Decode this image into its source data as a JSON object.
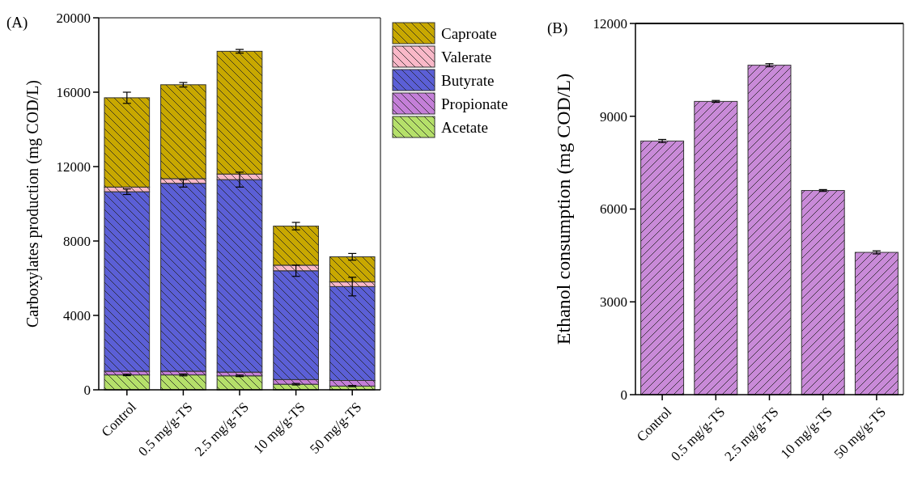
{
  "chart_data": [
    {
      "type": "bar",
      "title": "(A)",
      "ylabel": "Carboxylates production (mg COD/L)",
      "stacked": true,
      "legend": "top right",
      "grid": false,
      "categories": [
        "Control",
        "0.5 mg/g-TS",
        "2.5 mg/g-TS",
        "10 mg/g-TS",
        "50 mg/g-TS"
      ],
      "ylim": [
        0,
        20000
      ],
      "yticks": [
        0,
        4000,
        8000,
        12000,
        16000,
        20000
      ],
      "series": [
        {
          "name": "Acetate",
          "color": "#b5e06a",
          "values": [
            800,
            800,
            750,
            300,
            200
          ],
          "errors": [
            40,
            50,
            40,
            40,
            30
          ]
        },
        {
          "name": "Propionate",
          "color": "#c47fd8",
          "values": [
            200,
            200,
            200,
            250,
            300
          ],
          "errors": [
            null,
            null,
            null,
            null,
            null
          ]
        },
        {
          "name": "Butyrate",
          "color": "#5b5fd6",
          "values": [
            9650,
            10100,
            10350,
            5850,
            5050
          ],
          "errors": [
            150,
            200,
            400,
            300,
            500
          ]
        },
        {
          "name": "Valerate",
          "color": "#f9b8c8",
          "values": [
            250,
            250,
            300,
            300,
            250
          ],
          "errors": [
            null,
            null,
            null,
            null,
            null
          ]
        },
        {
          "name": "Caproate",
          "color": "#c8a800",
          "values": [
            4800,
            5050,
            6600,
            2100,
            1350
          ],
          "errors": [
            300,
            120,
            100,
            200,
            180
          ]
        }
      ]
    },
    {
      "type": "bar",
      "title": "(B)",
      "ylabel": "Ethanol consumption (mg COD/L)",
      "grid": false,
      "categories": [
        "Control",
        "0.5 mg/g-TS",
        "2.5 mg/g-TS",
        "10 mg/g-TS",
        "50 mg/g-TS"
      ],
      "ylim": [
        0,
        12000
      ],
      "yticks": [
        0,
        3000,
        6000,
        9000,
        12000
      ],
      "series": [
        {
          "color": "#c98ad8",
          "values": [
            8200,
            9480,
            10650,
            6600,
            4600
          ],
          "errors": [
            50,
            30,
            50,
            30,
            50
          ]
        }
      ]
    }
  ]
}
